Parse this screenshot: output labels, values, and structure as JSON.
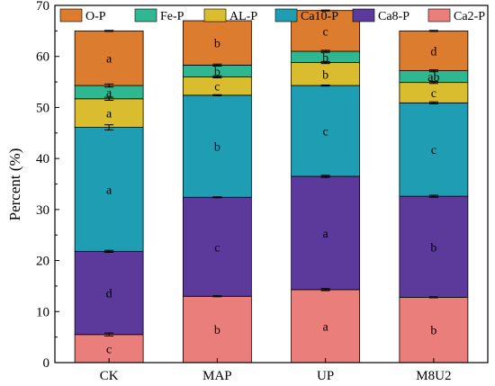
{
  "chart_data": {
    "type": "bar",
    "stacked": true,
    "categories": [
      "CK",
      "MAP",
      "UP",
      "M8U2"
    ],
    "ylabel": "Percent (%)",
    "ylim": [
      0,
      70
    ],
    "yticks": [
      0,
      10,
      20,
      30,
      40,
      50,
      60,
      70
    ],
    "grid": false,
    "legend_position": "top",
    "series": [
      {
        "name": "Ca2-P",
        "color": "#ea7e7b",
        "values": [
          5.5,
          13.0,
          14.3,
          12.8
        ],
        "errors": [
          0.3,
          0.1,
          0.2,
          0.1
        ],
        "letters": [
          "c",
          "b",
          "a",
          "b"
        ]
      },
      {
        "name": "Ca8-P",
        "color": "#5b3a9c",
        "values": [
          16.3,
          19.4,
          22.2,
          19.8
        ],
        "errors": [
          0.2,
          0.1,
          0.2,
          0.2
        ],
        "letters": [
          "d",
          "c",
          "a",
          "b"
        ]
      },
      {
        "name": "Ca10-P",
        "color": "#1e9db3",
        "values": [
          24.3,
          20.0,
          17.8,
          18.3
        ],
        "errors": [
          0.5,
          0.1,
          0.1,
          0.2
        ],
        "letters": [
          "a",
          "b",
          "c",
          "c"
        ]
      },
      {
        "name": "AL-P",
        "color": "#d9bd2e",
        "values": [
          5.6,
          3.6,
          4.5,
          4.0
        ],
        "errors": [
          0.3,
          0.2,
          0.2,
          0.2
        ],
        "letters": [
          "a",
          "c",
          "b",
          "c"
        ]
      },
      {
        "name": "Fe-P",
        "color": "#2fb791",
        "values": [
          2.6,
          2.3,
          2.2,
          2.3
        ],
        "errors": [
          0.3,
          0.2,
          0.2,
          0.2
        ],
        "letters": [
          "a",
          "b",
          "b",
          "ab"
        ]
      },
      {
        "name": "O-P",
        "color": "#dc7c2e",
        "values": [
          10.7,
          8.7,
          8.0,
          7.8
        ],
        "errors": [
          0.1,
          0.1,
          0.1,
          0.1
        ],
        "letters": [
          "a",
          "b",
          "c",
          "d"
        ]
      }
    ],
    "legend_order": [
      "O-P",
      "Fe-P",
      "AL-P",
      "Ca10-P",
      "Ca8-P",
      "Ca2-P"
    ]
  }
}
